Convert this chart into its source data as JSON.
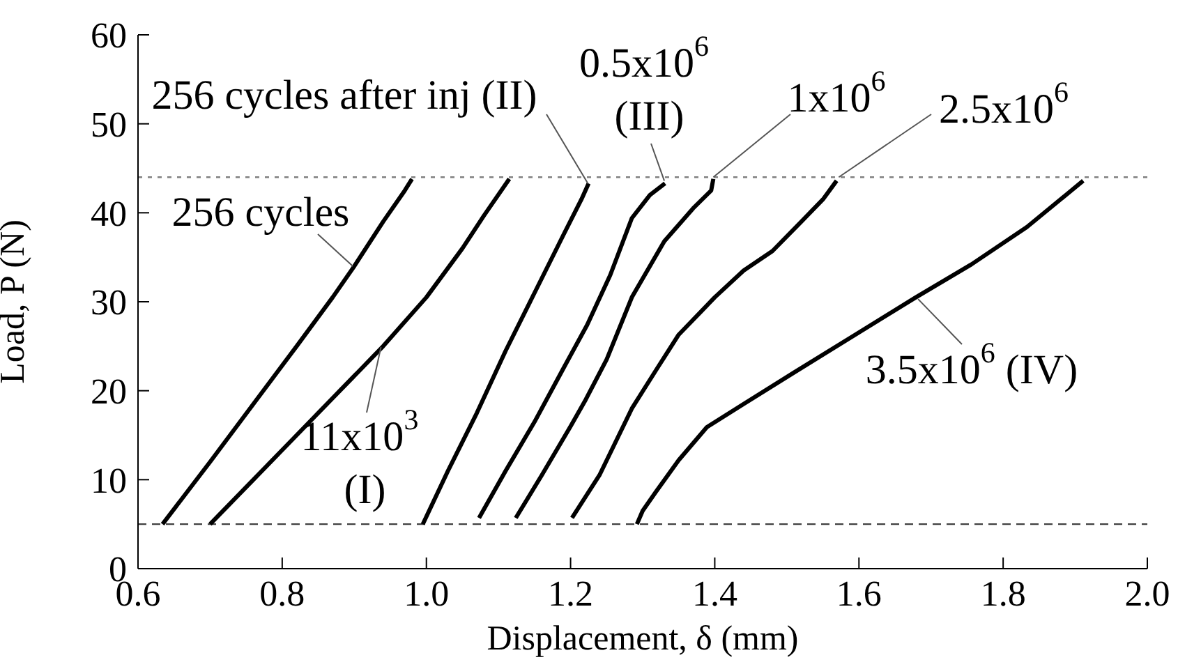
{
  "chart_data": {
    "type": "line",
    "xlabel": "Displacement, δ  (mm)",
    "ylabel": "Load, P (N)",
    "xlim": [
      0.6,
      2.0
    ],
    "xticks": [
      {
        "value": 0.6,
        "label": "0.6"
      },
      {
        "value": 0.8,
        "label": "0.8"
      },
      {
        "value": 1.0,
        "label": "1.0"
      },
      {
        "value": 1.2,
        "label": "1.2"
      },
      {
        "value": 1.4,
        "label": "1.4"
      },
      {
        "value": 1.6,
        "label": "1.6"
      },
      {
        "value": 1.8,
        "label": "1.8"
      },
      {
        "value": 2.0,
        "label": "2.0"
      }
    ],
    "ylim": [
      0,
      60
    ],
    "yticks": [
      0,
      10,
      20,
      30,
      40,
      50,
      60
    ],
    "grid": false,
    "marker": "none",
    "line_style": "solid",
    "series": [
      {
        "color": "#000000",
        "x": [
          0.634,
          0.7,
          0.76,
          0.82,
          0.87,
          0.9,
          0.94,
          0.97,
          0.98
        ],
        "values": [
          5,
          12,
          18.5,
          25,
          30.5,
          34,
          39,
          42.5,
          43.8
        ]
      },
      {
        "color": "#000000",
        "x": [
          0.7,
          0.76,
          0.82,
          0.88,
          0.94,
          1.0,
          1.05,
          1.08,
          1.115
        ],
        "values": [
          5,
          10,
          15,
          20,
          25,
          30.5,
          36,
          39.7,
          43.8
        ]
      },
      {
        "color": "#000000",
        "x": [
          0.995,
          1.03,
          1.07,
          1.11,
          1.15,
          1.19,
          1.215,
          1.225
        ],
        "values": [
          5,
          11,
          17.5,
          24.5,
          31,
          37.5,
          41.5,
          43.3
        ]
      },
      {
        "color": "#000000",
        "x": [
          1.073,
          1.11,
          1.15,
          1.19,
          1.223,
          1.255,
          1.285,
          1.31,
          1.331
        ],
        "values": [
          5.7,
          11,
          16.5,
          22.5,
          27.4,
          33,
          39.4,
          42,
          43.3
        ]
      },
      {
        "color": "#000000",
        "x": [
          1.124,
          1.16,
          1.2,
          1.221,
          1.25,
          1.285,
          1.33,
          1.37,
          1.395,
          1.398
        ],
        "values": [
          5.7,
          10.5,
          16,
          19,
          23.5,
          30.5,
          36.8,
          40.5,
          42.5,
          43.8
        ]
      },
      {
        "color": "#000000",
        "x": [
          1.202,
          1.24,
          1.285,
          1.32,
          1.35,
          1.4,
          1.44,
          1.48,
          1.52,
          1.55,
          1.569
        ],
        "values": [
          5.7,
          10.5,
          18,
          22.5,
          26.3,
          30.5,
          33.5,
          35.7,
          39,
          41.5,
          43.6
        ]
      },
      {
        "color": "#000000",
        "x": [
          1.292,
          1.3,
          1.318,
          1.35,
          1.389,
          1.44,
          1.511,
          1.595,
          1.679,
          1.756,
          1.833,
          1.911
        ],
        "values": [
          5,
          6.5,
          8.6,
          12.2,
          15.9,
          18.5,
          22.1,
          26.3,
          30.5,
          34.2,
          38.4,
          43.6
        ]
      }
    ],
    "ref_lines": [
      {
        "axis": "y",
        "value": 44,
        "color": "#808080",
        "line_style": "dotted"
      },
      {
        "axis": "y",
        "value": 5,
        "color": "#404040",
        "line_style": "dashed"
      }
    ],
    "annotations": [
      {
        "text": "256 cycles",
        "x": 0.898,
        "y": 34
      },
      {
        "text": "11x10$^{3}$ (I)",
        "x": 0.937,
        "y": 24.9
      },
      {
        "text": "256 cycles after inj (II)",
        "x": 1.224,
        "y": 43.3
      },
      {
        "text": "0.5x10$^{6}$ (III)",
        "x": 1.33,
        "y": 43.6
      },
      {
        "text": "1x10$^{6}$",
        "x": 1.398,
        "y": 44
      },
      {
        "text": "2.5x10$^{6}$",
        "x": 1.572,
        "y": 44
      },
      {
        "text": "3.5x10$^{6}$ (IV)",
        "x": 1.682,
        "y": 30.3
      }
    ]
  }
}
